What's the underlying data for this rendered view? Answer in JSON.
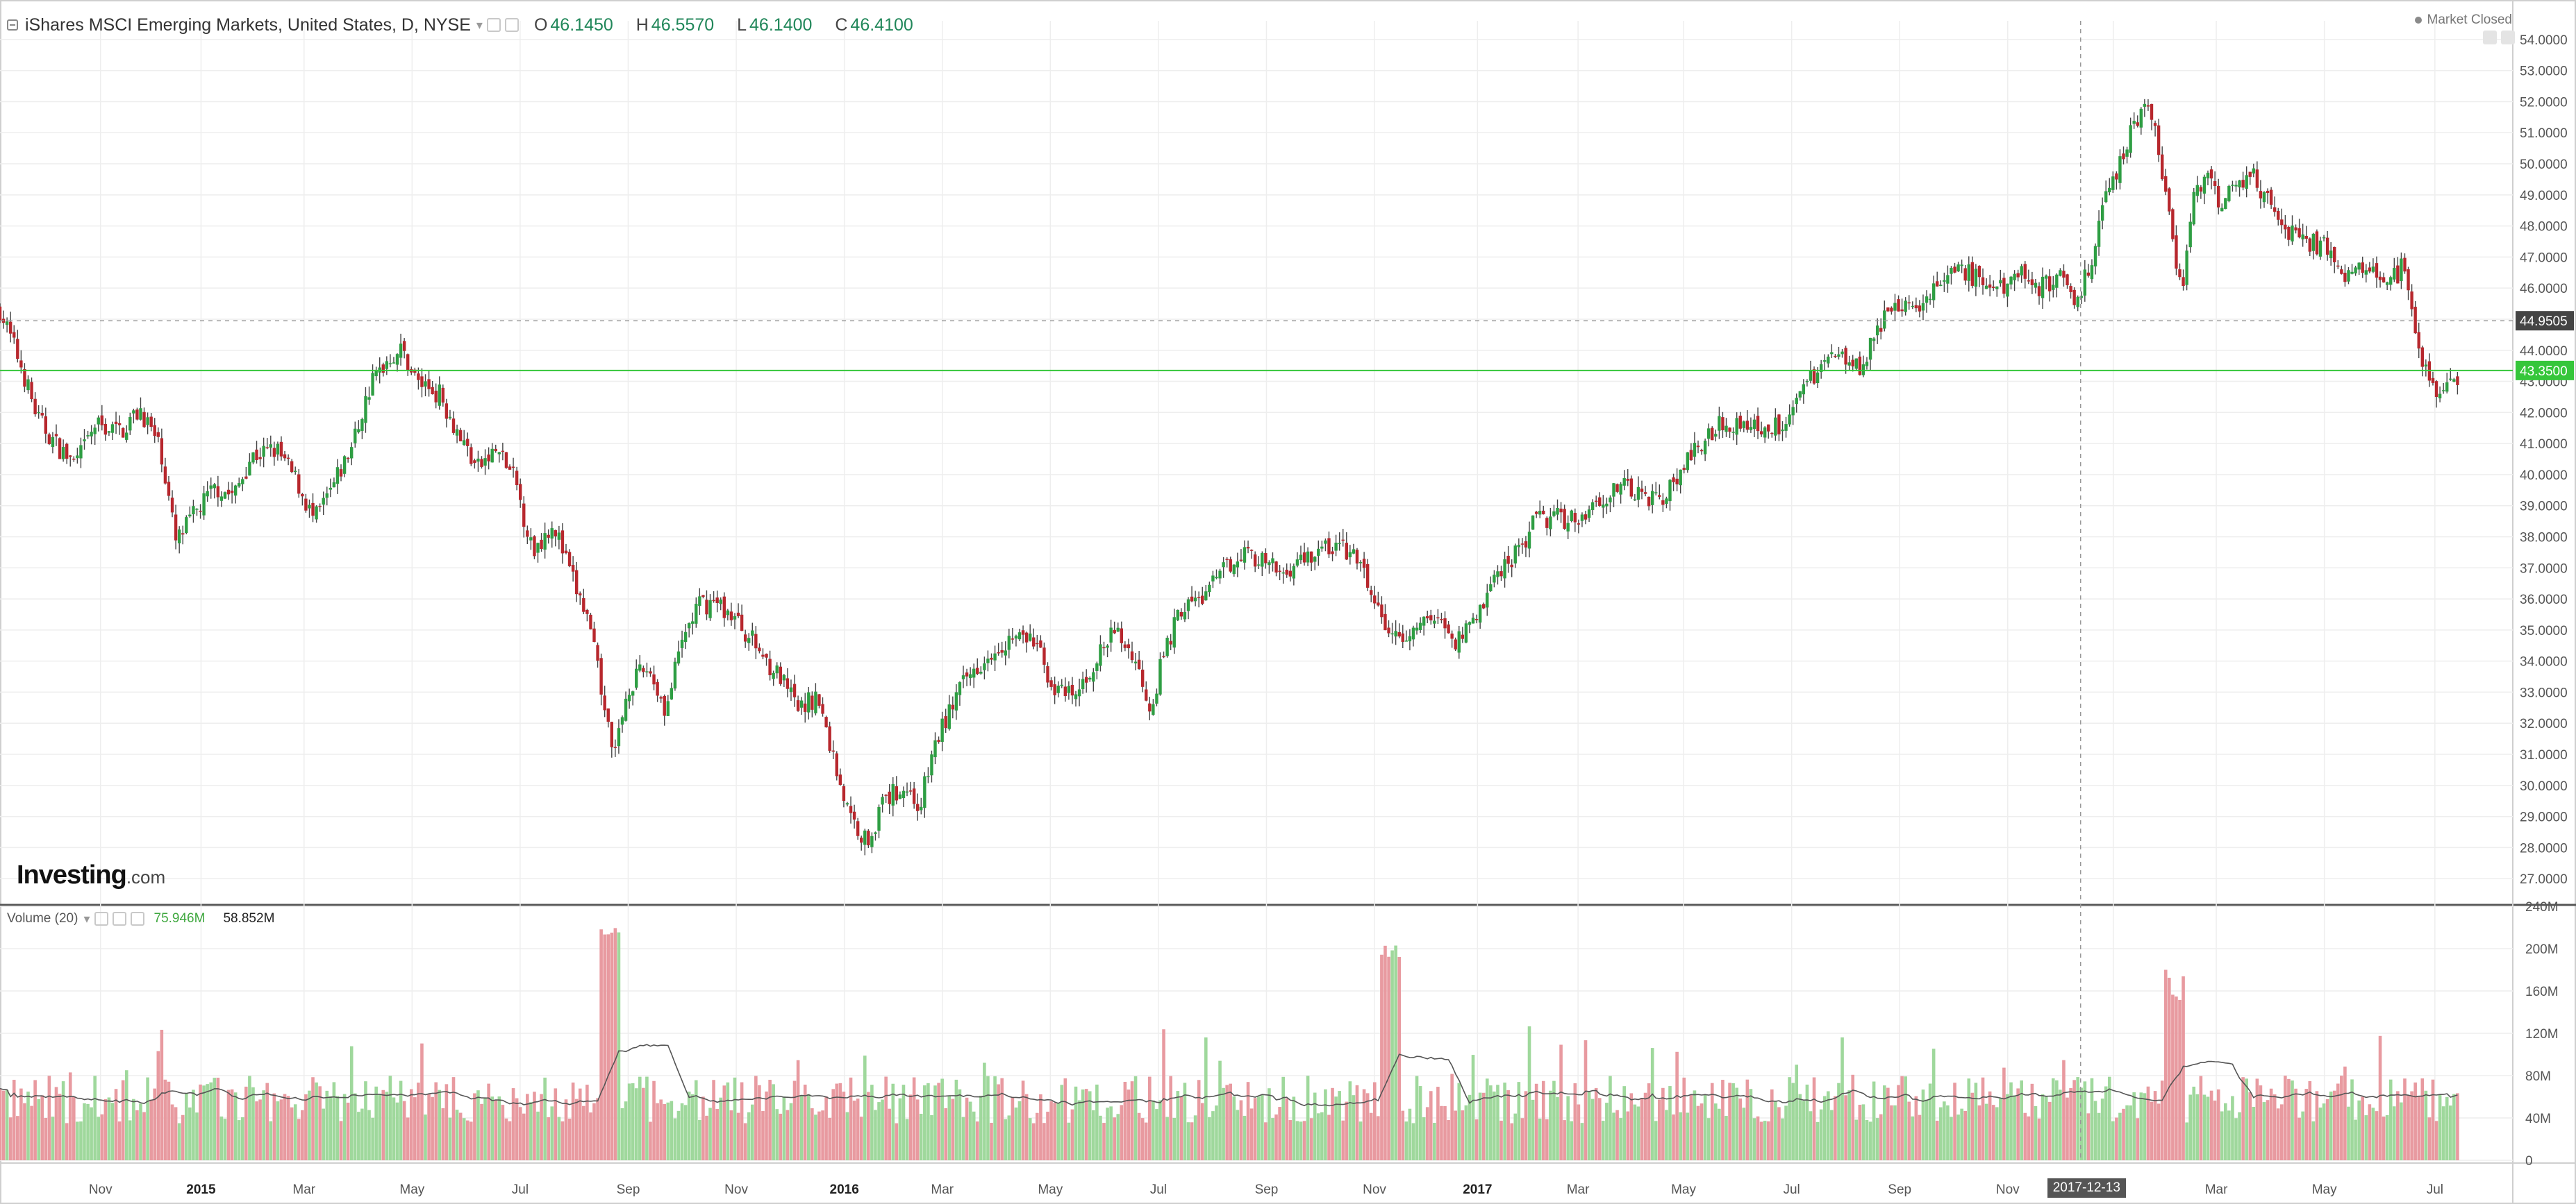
{
  "header": {
    "title": "iShares MSCI Emerging Markets, United States, D, NYSE",
    "open_label": "O",
    "open": "46.1450",
    "high_label": "H",
    "high": "46.5570",
    "low_label": "L",
    "low": "46.1400",
    "close_label": "C",
    "close": "46.4100"
  },
  "market_status": "Market Closed",
  "logo": {
    "brand": "Investing",
    "suffix": ".com"
  },
  "volume_header": {
    "label": "Volume (20)",
    "value": "75.946M",
    "ma_value": "58.852M"
  },
  "price_labels": {
    "crosshair": "44.9505",
    "last": "43.3500"
  },
  "crosshair_date": "2017-12-13",
  "colors": {
    "up": "#2e9e43",
    "down": "#b7272d",
    "vol_up": "#9fd89c",
    "vol_down": "#e89aa0",
    "last_line": "#35c63a",
    "grid": "#eeeeee",
    "axis_text": "#555555"
  },
  "chart_data": [
    {
      "type": "candlestick",
      "title": "iShares MSCI Emerging Markets, United States, D, NYSE",
      "ylim": [
        26.2,
        54.6
      ],
      "y_ticks": [
        "27.0000",
        "28.0000",
        "29.0000",
        "30.0000",
        "31.0000",
        "32.0000",
        "33.0000",
        "34.0000",
        "35.0000",
        "36.0000",
        "37.0000",
        "38.0000",
        "39.0000",
        "40.0000",
        "41.0000",
        "42.0000",
        "43.0000",
        "44.0000",
        "45.0000",
        "46.0000",
        "47.0000",
        "48.0000",
        "49.0000",
        "50.0000",
        "51.0000",
        "52.0000",
        "53.0000",
        "54.0000"
      ],
      "x_ticks": [
        "Nov",
        "2015",
        "Mar",
        "May",
        "Jul",
        "Sep",
        "Nov",
        "2016",
        "Mar",
        "May",
        "Jul",
        "Sep",
        "Nov",
        "2017",
        "Mar",
        "May",
        "Jul",
        "Sep",
        "Nov",
        "",
        "Mar",
        "May",
        "Jul"
      ],
      "x_tick_positions": [
        0.04,
        0.08,
        0.121,
        0.164,
        0.207,
        0.25,
        0.293,
        0.336,
        0.375,
        0.418,
        0.461,
        0.504,
        0.547,
        0.588,
        0.628,
        0.67,
        0.713,
        0.756,
        0.799,
        0.841,
        0.882,
        0.925,
        0.969
      ],
      "price_path": [
        [
          0.0,
          45.3
        ],
        [
          0.008,
          43.6
        ],
        [
          0.015,
          41.8
        ],
        [
          0.022,
          41.0
        ],
        [
          0.03,
          40.3
        ],
        [
          0.038,
          41.6
        ],
        [
          0.048,
          41.4
        ],
        [
          0.056,
          42.1
        ],
        [
          0.064,
          40.8
        ],
        [
          0.07,
          37.8
        ],
        [
          0.078,
          38.8
        ],
        [
          0.086,
          39.6
        ],
        [
          0.093,
          39.3
        ],
        [
          0.1,
          40.6
        ],
        [
          0.11,
          40.8
        ],
        [
          0.118,
          39.8
        ],
        [
          0.125,
          38.5
        ],
        [
          0.132,
          39.5
        ],
        [
          0.14,
          40.9
        ],
        [
          0.148,
          43.0
        ],
        [
          0.155,
          43.8
        ],
        [
          0.16,
          44.0
        ],
        [
          0.166,
          43.0
        ],
        [
          0.175,
          42.6
        ],
        [
          0.182,
          41.4
        ],
        [
          0.19,
          40.2
        ],
        [
          0.198,
          40.8
        ],
        [
          0.205,
          39.8
        ],
        [
          0.212,
          37.5
        ],
        [
          0.22,
          38.5
        ],
        [
          0.227,
          36.8
        ],
        [
          0.234,
          35.3
        ],
        [
          0.24,
          32.8
        ],
        [
          0.244,
          30.8
        ],
        [
          0.25,
          33.2
        ],
        [
          0.258,
          33.8
        ],
        [
          0.265,
          32.4
        ],
        [
          0.272,
          34.8
        ],
        [
          0.278,
          35.8
        ],
        [
          0.285,
          35.9
        ],
        [
          0.292,
          35.4
        ],
        [
          0.3,
          34.6
        ],
        [
          0.31,
          33.5
        ],
        [
          0.318,
          32.4
        ],
        [
          0.325,
          32.9
        ],
        [
          0.332,
          30.8
        ],
        [
          0.338,
          29.0
        ],
        [
          0.345,
          28.2
        ],
        [
          0.352,
          29.5
        ],
        [
          0.36,
          30.0
        ],
        [
          0.366,
          29.3
        ],
        [
          0.372,
          31.3
        ],
        [
          0.38,
          32.8
        ],
        [
          0.388,
          33.8
        ],
        [
          0.396,
          34.5
        ],
        [
          0.404,
          34.8
        ],
        [
          0.412,
          34.6
        ],
        [
          0.42,
          33.0
        ],
        [
          0.428,
          32.8
        ],
        [
          0.436,
          34.0
        ],
        [
          0.444,
          35.0
        ],
        [
          0.452,
          34.0
        ],
        [
          0.458,
          32.5
        ],
        [
          0.463,
          34.2
        ],
        [
          0.47,
          35.7
        ],
        [
          0.478,
          36.0
        ],
        [
          0.486,
          36.8
        ],
        [
          0.494,
          37.6
        ],
        [
          0.502,
          37.2
        ],
        [
          0.51,
          36.8
        ],
        [
          0.518,
          37.3
        ],
        [
          0.526,
          37.6
        ],
        [
          0.534,
          37.7
        ],
        [
          0.542,
          37.0
        ],
        [
          0.55,
          35.2
        ],
        [
          0.557,
          34.6
        ],
        [
          0.565,
          35.2
        ],
        [
          0.572,
          35.4
        ],
        [
          0.58,
          34.6
        ],
        [
          0.588,
          35.6
        ],
        [
          0.596,
          36.8
        ],
        [
          0.604,
          37.6
        ],
        [
          0.612,
          38.6
        ],
        [
          0.62,
          38.6
        ],
        [
          0.628,
          38.6
        ],
        [
          0.636,
          39.2
        ],
        [
          0.644,
          39.6
        ],
        [
          0.652,
          39.4
        ],
        [
          0.66,
          39.2
        ],
        [
          0.668,
          39.9
        ],
        [
          0.676,
          41.0
        ],
        [
          0.684,
          41.6
        ],
        [
          0.692,
          41.7
        ],
        [
          0.7,
          41.5
        ],
        [
          0.708,
          41.6
        ],
        [
          0.716,
          42.5
        ],
        [
          0.724,
          43.5
        ],
        [
          0.732,
          44.0
        ],
        [
          0.74,
          43.5
        ],
        [
          0.748,
          44.8
        ],
        [
          0.756,
          45.4
        ],
        [
          0.764,
          45.6
        ],
        [
          0.772,
          46.1
        ],
        [
          0.78,
          46.6
        ],
        [
          0.788,
          46.2
        ],
        [
          0.796,
          45.9
        ],
        [
          0.804,
          46.7
        ],
        [
          0.812,
          46.0
        ],
        [
          0.82,
          46.4
        ],
        [
          0.826,
          45.6
        ],
        [
          0.832,
          46.8
        ],
        [
          0.838,
          48.8
        ],
        [
          0.844,
          50.2
        ],
        [
          0.85,
          51.5
        ],
        [
          0.855,
          52.0
        ],
        [
          0.86,
          50.0
        ],
        [
          0.864,
          48.0
        ],
        [
          0.868,
          45.8
        ],
        [
          0.872,
          48.6
        ],
        [
          0.878,
          49.6
        ],
        [
          0.884,
          48.6
        ],
        [
          0.89,
          49.4
        ],
        [
          0.896,
          49.8
        ],
        [
          0.902,
          48.8
        ],
        [
          0.908,
          47.9
        ],
        [
          0.914,
          47.6
        ],
        [
          0.92,
          47.5
        ],
        [
          0.926,
          47.3
        ],
        [
          0.932,
          46.4
        ],
        [
          0.938,
          46.8
        ],
        [
          0.944,
          46.9
        ],
        [
          0.95,
          46.0
        ],
        [
          0.956,
          46.7
        ],
        [
          0.962,
          44.3
        ],
        [
          0.967,
          43.0
        ],
        [
          0.972,
          42.4
        ],
        [
          0.978,
          43.2
        ]
      ],
      "last_price": 43.35,
      "crosshair_price": 44.9505
    },
    {
      "type": "bar",
      "title": "Volume (20)",
      "ylim": [
        0,
        240
      ],
      "y_ticks": [
        "0",
        "40M",
        "80M",
        "120M",
        "160M",
        "200M",
        "240M"
      ],
      "y_tick_values": [
        0,
        40,
        80,
        120,
        160,
        200,
        240
      ],
      "ma_value": 58.852,
      "last_value": 75.946
    }
  ]
}
